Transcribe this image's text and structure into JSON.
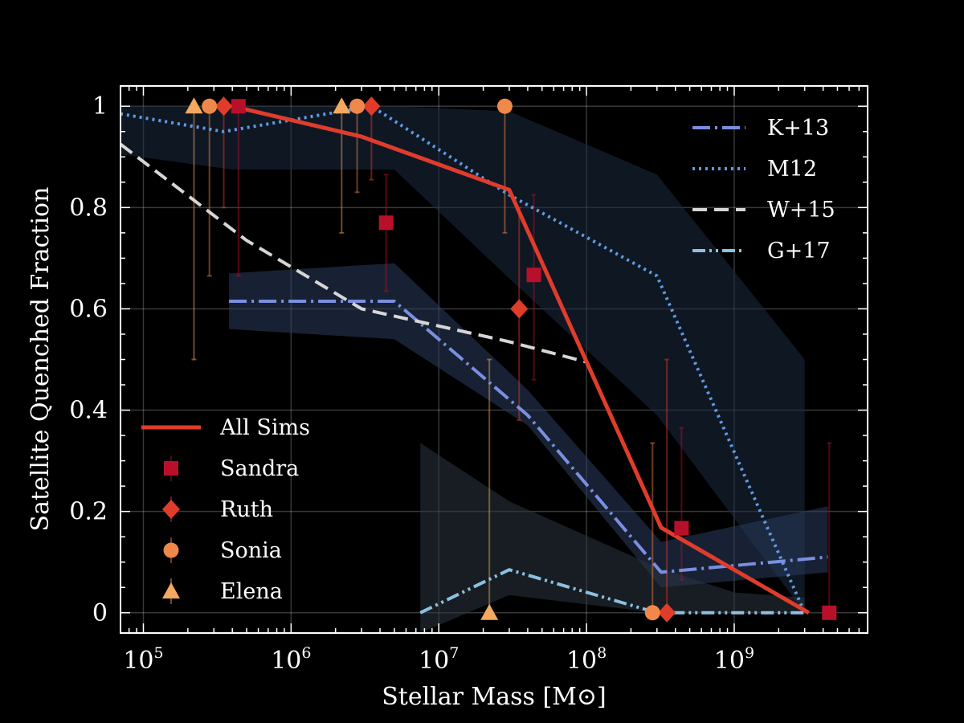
{
  "chart_data": {
    "type": "line",
    "xlabel": "Stellar Mass [M⊙]",
    "ylabel": "Satellite Quenched Fraction",
    "xscale": "log",
    "xlim": [
      70000,
      8000000000
    ],
    "ylim": [
      -0.04,
      1.04
    ],
    "grid": true,
    "x_ticks": [
      {
        "value": 100000,
        "base": "10",
        "exp": "5"
      },
      {
        "value": 1000000,
        "base": "10",
        "exp": "6"
      },
      {
        "value": 10000000,
        "base": "10",
        "exp": "7"
      },
      {
        "value": 100000000,
        "base": "10",
        "exp": "8"
      },
      {
        "value": 1000000000,
        "base": "10",
        "exp": "9"
      }
    ],
    "y_ticks": [
      {
        "value": 0,
        "label": "0"
      },
      {
        "value": 0.2,
        "label": "0.2"
      },
      {
        "value": 0.4,
        "label": "0.4"
      },
      {
        "value": 0.6,
        "label": "0.6"
      },
      {
        "value": 0.8,
        "label": "0.8"
      },
      {
        "value": 1,
        "label": "1"
      }
    ],
    "bands": [
      {
        "color": "#1c2a40",
        "opacity": 0.55,
        "upper": [
          [
            70000,
            1.0
          ],
          [
            400000,
            1.0
          ],
          [
            5000000,
            1.0
          ],
          [
            30000000,
            0.99
          ],
          [
            300000000,
            0.865
          ],
          [
            3000000000,
            0.5
          ]
        ],
        "lower": [
          [
            70000,
            0.905
          ],
          [
            400000,
            0.875
          ],
          [
            5000000,
            0.875
          ],
          [
            30000000,
            0.66
          ],
          [
            300000000,
            0.39
          ],
          [
            3000000000,
            0.0
          ]
        ]
      },
      {
        "color": "#2a3c5c",
        "opacity": 0.55,
        "upper": [
          [
            380000,
            0.67
          ],
          [
            5000000,
            0.69
          ],
          [
            40000000,
            0.44
          ],
          [
            320000000,
            0.14
          ],
          [
            4300000000,
            0.21
          ]
        ],
        "lower": [
          [
            380000,
            0.56
          ],
          [
            5000000,
            0.54
          ],
          [
            40000000,
            0.37
          ],
          [
            320000000,
            0.05
          ],
          [
            4300000000,
            0.08
          ]
        ]
      },
      {
        "color": "#2a3440",
        "opacity": 0.55,
        "upper": [
          [
            7500000,
            0.335
          ],
          [
            30000000,
            0.22
          ],
          [
            300000000,
            0.09
          ],
          [
            1000000000,
            0.04
          ],
          [
            3000000000,
            0.03
          ]
        ],
        "lower": [
          [
            7500000,
            -0.04
          ],
          [
            30000000,
            0.035
          ],
          [
            300000000,
            0.0
          ],
          [
            1000000000,
            0.0
          ],
          [
            3000000000,
            0.0
          ]
        ]
      }
    ],
    "series": [
      {
        "name": "K+13",
        "color": "#7b8fe0",
        "width": 4,
        "dash": "22 6 3 6",
        "points": [
          [
            380000,
            0.615
          ],
          [
            5000000,
            0.615
          ],
          [
            40000000,
            0.39
          ],
          [
            320000000,
            0.08
          ],
          [
            4300000000,
            0.11
          ]
        ]
      },
      {
        "name": "M12",
        "color": "#5f9be0",
        "width": 4,
        "dash": "3 5",
        "points": [
          [
            70000,
            0.985
          ],
          [
            350000,
            0.95
          ],
          [
            3500000,
            1.0
          ],
          [
            30000000,
            0.825
          ],
          [
            300000000,
            0.665
          ],
          [
            3000000000,
            0.0
          ]
        ]
      },
      {
        "name": "W+15",
        "color": "#d6d6d6",
        "width": 4,
        "dash": "18 9",
        "points": [
          [
            70000,
            0.925
          ],
          [
            500000,
            0.735
          ],
          [
            3000000,
            0.6
          ],
          [
            30000000,
            0.535
          ],
          [
            100000000,
            0.495
          ]
        ]
      },
      {
        "name": "G+17",
        "color": "#8cc0e0",
        "width": 4,
        "dash": "16 5 3 5 3 5",
        "points": [
          [
            7500000,
            0.0
          ],
          [
            30000000,
            0.085
          ],
          [
            300000000,
            0.0
          ],
          [
            3000000000,
            0.0
          ]
        ]
      },
      {
        "name": "All Sims",
        "color": "#e03c2c",
        "width": 5,
        "dash": "",
        "points": [
          [
            400000,
            1.0
          ],
          [
            3000000,
            0.94
          ],
          [
            30000000,
            0.835
          ],
          [
            320000000,
            0.168
          ],
          [
            3200000000,
            0.0
          ]
        ]
      }
    ],
    "sims": [
      {
        "name": "Sandra",
        "marker": "square",
        "color": "#b8102a",
        "points": [
          {
            "x": 440000,
            "y": 1.0,
            "yerr_low": 0.665,
            "yerr_high": 1.0
          },
          {
            "x": 4400000,
            "y": 0.77,
            "yerr_low": 0.635,
            "yerr_high": 0.865
          },
          {
            "x": 44000000,
            "y": 0.667,
            "yerr_low": 0.46,
            "yerr_high": 0.825
          },
          {
            "x": 440000000,
            "y": 0.167,
            "yerr_low": 0.065,
            "yerr_high": 0.365
          },
          {
            "x": 4400000000,
            "y": 0.0,
            "yerr_low": 0.0,
            "yerr_high": 0.335
          }
        ]
      },
      {
        "name": "Ruth",
        "marker": "diamond",
        "color": "#e03c2c",
        "points": [
          {
            "x": 350000,
            "y": 1.0,
            "yerr_low": 0.8,
            "yerr_high": 1.0
          },
          {
            "x": 3500000,
            "y": 1.0,
            "yerr_low": 0.855,
            "yerr_high": 1.0
          },
          {
            "x": 35000000,
            "y": 0.6,
            "yerr_low": 0.38,
            "yerr_high": 0.8
          },
          {
            "x": 350000000,
            "y": 0.0,
            "yerr_low": 0.0,
            "yerr_high": 0.5
          }
        ]
      },
      {
        "name": "Sonia",
        "marker": "circle",
        "color": "#f0884c",
        "points": [
          {
            "x": 280000,
            "y": 1.0,
            "yerr_low": 0.665,
            "yerr_high": 1.0
          },
          {
            "x": 2800000,
            "y": 1.0,
            "yerr_low": 0.83,
            "yerr_high": 1.0
          },
          {
            "x": 28000000,
            "y": 1.0,
            "yerr_low": 0.75,
            "yerr_high": 1.0
          },
          {
            "x": 280000000,
            "y": 0.0,
            "yerr_low": 0.0,
            "yerr_high": 0.335
          }
        ]
      },
      {
        "name": "Elena",
        "marker": "triangle",
        "color": "#f5a860",
        "points": [
          {
            "x": 220000,
            "y": 1.0,
            "yerr_low": 0.5,
            "yerr_high": 1.0
          },
          {
            "x": 2200000,
            "y": 1.0,
            "yerr_low": 0.75,
            "yerr_high": 1.0
          },
          {
            "x": 22000000,
            "y": 0.0,
            "yerr_low": 0.0,
            "yerr_high": 0.5
          }
        ]
      }
    ],
    "legend_upper_right": [
      "K+13",
      "M12",
      "W+15",
      "G+17"
    ],
    "legend_lower_left": [
      "All Sims",
      "Sandra",
      "Ruth",
      "Sonia",
      "Elena"
    ]
  }
}
